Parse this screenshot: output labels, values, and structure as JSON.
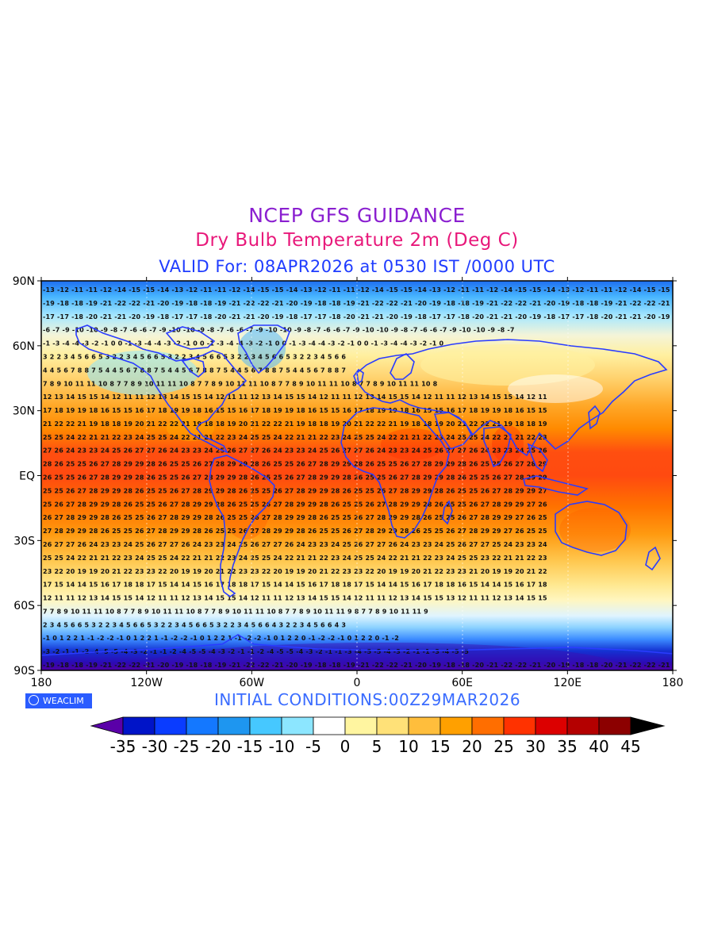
{
  "titles": {
    "line1": "NCEP GFS GUIDANCE",
    "line2": "Dry Bulb Temperature 2m (Deg C)",
    "line3": "VALID For: 08APR2026 at 0530 IST /0000 UTC"
  },
  "map": {
    "lat_labels": [
      "90N",
      "60N",
      "30N",
      "EQ",
      "30S",
      "60S",
      "90S"
    ],
    "lon_labels": [
      "180",
      "120W",
      "60W",
      "0",
      "60E",
      "120E",
      "180"
    ]
  },
  "footer": {
    "logo_text": "WEACLIM",
    "init_text": "INITIAL CONDITIONS:00Z29MAR2026"
  },
  "colorbar": {
    "labels": [
      "-35",
      "-30",
      "-25",
      "-20",
      "-15",
      "-10",
      "-5",
      "0",
      "5",
      "10",
      "15",
      "20",
      "25",
      "30",
      "35",
      "40",
      "45"
    ],
    "colors": [
      "#5a00a8",
      "#0014c8",
      "#0a3cff",
      "#1478ff",
      "#1e96f0",
      "#46c8ff",
      "#8ce6ff",
      "#ffffff",
      "#fff5a0",
      "#ffe178",
      "#ffbe3c",
      "#ffa000",
      "#ff6e00",
      "#ff3200",
      "#dc0000",
      "#b40000",
      "#8c0000",
      "#000000"
    ]
  },
  "colors": {
    "coastline": "#2a3cff",
    "title1": "#8a1fd0",
    "title2": "#e8187a",
    "title3": "#1f3cff"
  }
}
